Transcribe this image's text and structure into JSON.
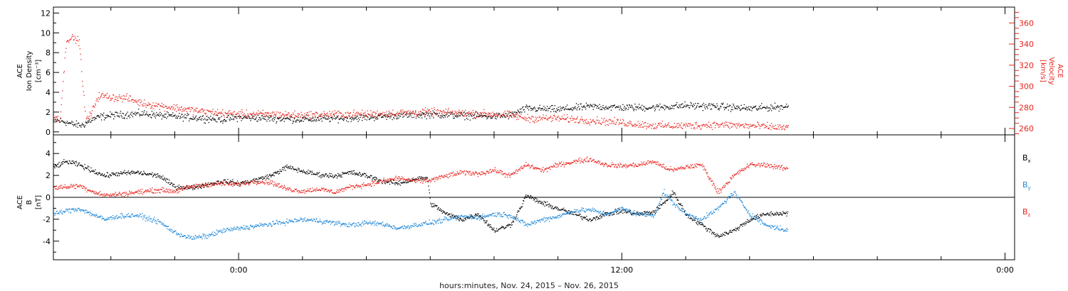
{
  "colors": {
    "black": "#000000",
    "red": "#e8231d",
    "blue": "#1e88d8",
    "frame": "#000000"
  },
  "xaxis": {
    "label": "hours:minutes, Nov. 24, 2015 – Nov. 26, 2015",
    "range_hours": [
      -5.8,
      24.3
    ],
    "tick_hours": [
      0,
      12,
      24
    ],
    "tick_labels": [
      "0:00",
      "12:00",
      "0:00"
    ],
    "minor_step_hours": 2,
    "data_end_hours": 17.2
  },
  "chart_data": [
    {
      "type": "scatter",
      "panel": "plasma",
      "title": "",
      "y_left_label": [
        "ACE",
        "Ion Density",
        "[cm⁻³]"
      ],
      "y_right_label": [
        "ACE",
        "Velocity",
        "[km/s]"
      ],
      "ylim_left": [
        -0.3,
        12.6
      ],
      "ylim_right": [
        254,
        375
      ],
      "yticks_left": [
        0,
        2,
        4,
        6,
        8,
        10,
        12
      ],
      "yticks_right": [
        260,
        280,
        300,
        320,
        340,
        360
      ],
      "series": [
        {
          "axis": "left",
          "color": "#000000",
          "x": [
            -5.8,
            -5.5,
            -5.2,
            -4.9,
            -4.6,
            -4.3,
            -4.0,
            -3.5,
            -3.0,
            -2.5,
            -2.0,
            -1.5,
            -1.0,
            -0.5,
            0.0,
            1.0,
            2.0,
            3.0,
            4.0,
            5.0,
            6.0,
            7.0,
            8.0,
            8.5,
            9.0,
            10.0,
            11.0,
            12.0,
            13.0,
            14.0,
            15.0,
            16.0,
            17.2
          ],
          "y": [
            1.2,
            1.1,
            0.8,
            0.7,
            1.3,
            1.6,
            1.7,
            1.8,
            1.9,
            1.7,
            1.6,
            1.5,
            1.4,
            1.3,
            1.5,
            1.4,
            1.3,
            1.4,
            1.5,
            1.7,
            1.8,
            1.7,
            1.6,
            1.7,
            2.4,
            2.3,
            2.6,
            2.5,
            2.5,
            2.7,
            2.6,
            2.4,
            2.6
          ]
        },
        {
          "axis": "right",
          "color": "#e8231d",
          "x": [
            -5.8,
            -5.6,
            -5.4,
            -5.2,
            -5.0,
            -4.8,
            -4.6,
            -4.5,
            -4.4,
            -4.2,
            -4.0,
            -3.5,
            -3.0,
            -2.5,
            -2.0,
            -1.5,
            -1.0,
            -0.5,
            0.0,
            1.0,
            2.0,
            3.0,
            4.0,
            5.0,
            6.0,
            7.0,
            8.0,
            8.5,
            9.0,
            10.0,
            11.0,
            12.0,
            13.0,
            14.0,
            15.0,
            16.0,
            17.2
          ],
          "y": [
            272,
            270,
            345,
            346,
            343,
            268,
            276,
            285,
            291,
            291,
            290,
            289,
            284,
            282,
            280,
            278,
            276,
            275,
            274,
            274,
            273,
            274,
            274,
            275,
            276,
            275,
            274,
            273,
            270,
            270,
            268,
            266,
            263,
            263,
            264,
            263,
            261
          ]
        }
      ]
    },
    {
      "type": "scatter",
      "panel": "magnetic",
      "title": "",
      "y_left_label": [
        "ACE",
        "B",
        "[nT]"
      ],
      "ylim": [
        -5.7,
        5.7
      ],
      "yticks": [
        -4,
        -2,
        0,
        2,
        4
      ],
      "zero_line": true,
      "legend_position": "right",
      "series": [
        {
          "name": "B",
          "name_sub": "x",
          "color": "#000000",
          "x": [
            -5.8,
            -5.4,
            -5.0,
            -4.6,
            -4.2,
            -3.8,
            -3.2,
            -2.5,
            -2.0,
            -1.5,
            -1.0,
            -0.5,
            0.0,
            0.5,
            1.0,
            1.5,
            2.0,
            2.5,
            3.0,
            3.5,
            4.0,
            4.5,
            5.0,
            5.5,
            5.9,
            6.0,
            6.5,
            7.0,
            7.5,
            8.0,
            8.5,
            8.8,
            9.0,
            9.5,
            10.0,
            10.5,
            11.0,
            11.5,
            12.0,
            12.5,
            13.0,
            13.3,
            13.6,
            14.0,
            14.5,
            15.0,
            15.5,
            16.0,
            16.5,
            17.2
          ],
          "y": [
            2.8,
            3.3,
            3.0,
            2.5,
            2.0,
            2.2,
            2.3,
            2.0,
            1.0,
            0.9,
            1.2,
            1.5,
            1.3,
            1.6,
            2.0,
            2.8,
            2.4,
            2.1,
            2.0,
            2.3,
            2.0,
            1.5,
            1.3,
            1.7,
            1.8,
            -0.5,
            -1.5,
            -2.0,
            -1.5,
            -3.0,
            -2.5,
            -1.0,
            0.2,
            -0.5,
            -1.0,
            -1.5,
            -2.0,
            -1.5,
            -1.2,
            -1.5,
            -1.3,
            -0.5,
            0.5,
            -1.5,
            -2.5,
            -3.5,
            -3.0,
            -2.0,
            -1.5,
            -1.4
          ]
        },
        {
          "name": "B",
          "name_sub": "y",
          "color": "#1e88d8",
          "x": [
            -5.8,
            -5.4,
            -5.0,
            -4.6,
            -4.2,
            -3.8,
            -3.2,
            -2.5,
            -2.0,
            -1.5,
            -1.0,
            -0.5,
            0.0,
            0.5,
            1.0,
            1.5,
            2.0,
            2.5,
            3.0,
            3.5,
            4.0,
            4.5,
            5.0,
            5.5,
            6.0,
            6.5,
            7.0,
            7.5,
            8.0,
            8.5,
            9.0,
            9.5,
            10.0,
            10.5,
            11.0,
            11.5,
            12.0,
            12.5,
            13.0,
            13.3,
            13.6,
            14.0,
            14.5,
            15.0,
            15.5,
            16.0,
            16.5,
            17.2
          ],
          "y": [
            -1.5,
            -1.2,
            -1.0,
            -1.5,
            -2.0,
            -1.7,
            -1.6,
            -2.2,
            -3.2,
            -3.7,
            -3.5,
            -3.0,
            -2.8,
            -2.6,
            -2.4,
            -2.2,
            -2.0,
            -2.1,
            -2.3,
            -2.5,
            -2.3,
            -2.4,
            -2.8,
            -2.5,
            -2.3,
            -2.0,
            -1.7,
            -1.8,
            -1.5,
            -1.6,
            -2.5,
            -2.0,
            -1.7,
            -1.2,
            -1.1,
            -1.5,
            -1.0,
            -1.5,
            -1.6,
            0.5,
            -0.5,
            -1.5,
            -2.0,
            -1.0,
            0.5,
            -1.5,
            -2.5,
            -3.0
          ]
        },
        {
          "name": "B",
          "name_sub": "z",
          "color": "#e8231d",
          "x": [
            -5.8,
            -5.4,
            -5.0,
            -4.6,
            -4.2,
            -3.8,
            -3.2,
            -2.5,
            -2.0,
            -1.5,
            -1.0,
            -0.5,
            0.0,
            0.5,
            1.0,
            1.5,
            2.0,
            2.5,
            3.0,
            3.5,
            4.0,
            4.5,
            5.0,
            5.5,
            6.0,
            6.5,
            7.0,
            7.5,
            8.0,
            8.5,
            9.0,
            9.5,
            10.0,
            10.5,
            11.0,
            11.5,
            12.0,
            12.5,
            13.0,
            13.3,
            13.6,
            14.0,
            14.5,
            15.0,
            15.5,
            16.0,
            16.5,
            17.2
          ],
          "y": [
            0.9,
            1.0,
            1.1,
            0.6,
            0.2,
            0.3,
            0.5,
            0.7,
            0.6,
            1.0,
            1.2,
            1.3,
            1.2,
            1.5,
            1.4,
            0.8,
            0.6,
            0.8,
            0.5,
            1.0,
            1.2,
            1.5,
            1.8,
            1.5,
            1.6,
            2.0,
            2.3,
            2.2,
            2.5,
            2.0,
            3.0,
            2.5,
            3.0,
            3.3,
            3.5,
            3.0,
            2.9,
            3.0,
            3.3,
            2.8,
            2.5,
            2.8,
            3.0,
            0.5,
            2.0,
            3.0,
            3.0,
            2.6
          ]
        }
      ]
    }
  ]
}
